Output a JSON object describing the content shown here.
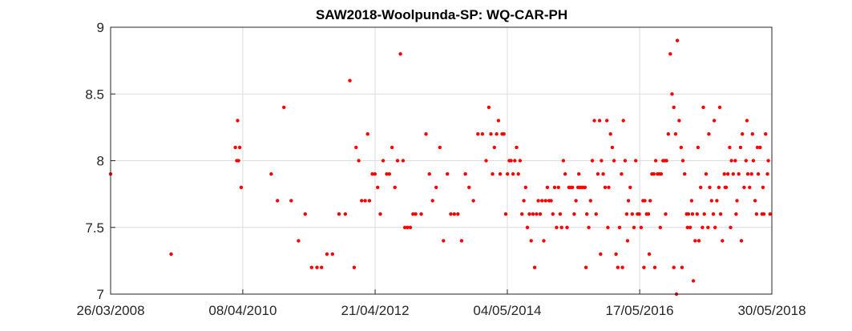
{
  "chart_data": {
    "type": "scatter",
    "title": "SAW2018-Woolpunda-SP: WQ-CAR-PH",
    "xlabel": "",
    "ylabel": "",
    "grid": true,
    "x_axis_type": "date",
    "xlim": [
      "2008-03-26",
      "2018-05-30"
    ],
    "ylim": [
      7,
      9
    ],
    "x_ticks": [
      {
        "date": "2008-03-26",
        "label": "26/03/2008"
      },
      {
        "date": "2010-04-08",
        "label": "08/04/2010"
      },
      {
        "date": "2012-04-21",
        "label": "21/04/2012"
      },
      {
        "date": "2014-05-04",
        "label": "04/05/2014"
      },
      {
        "date": "2016-05-17",
        "label": "17/05/2016"
      },
      {
        "date": "2018-05-30",
        "label": "30/05/2018"
      }
    ],
    "y_ticks": [
      {
        "value": 7,
        "label": "7"
      },
      {
        "value": 7.5,
        "label": "7.5"
      },
      {
        "value": 8,
        "label": "8"
      },
      {
        "value": 8.5,
        "label": "8.5"
      },
      {
        "value": 9,
        "label": "9"
      }
    ],
    "marker_color": "#ff0000",
    "series": [
      {
        "points": [
          [
            "2008-03-26",
            7.9
          ],
          [
            "2009-03-01",
            7.3
          ],
          [
            "2010-02-25",
            8.1
          ],
          [
            "2010-03-05",
            8.0
          ],
          [
            "2010-03-10",
            8.3
          ],
          [
            "2010-03-15",
            8.0
          ],
          [
            "2010-03-22",
            8.1
          ],
          [
            "2010-03-30",
            7.8
          ],
          [
            "2010-09-15",
            7.9
          ],
          [
            "2010-10-20",
            7.7
          ],
          [
            "2010-11-25",
            8.4
          ],
          [
            "2011-01-05",
            7.7
          ],
          [
            "2011-02-15",
            7.4
          ],
          [
            "2011-03-25",
            7.6
          ],
          [
            "2011-04-30",
            7.2
          ],
          [
            "2011-05-30",
            7.2
          ],
          [
            "2011-06-25",
            7.2
          ],
          [
            "2011-07-25",
            7.3
          ],
          [
            "2011-08-25",
            7.3
          ],
          [
            "2011-10-01",
            7.6
          ],
          [
            "2011-11-05",
            7.6
          ],
          [
            "2011-12-01",
            8.6
          ],
          [
            "2011-12-25",
            7.2
          ],
          [
            "2012-01-05",
            8.1
          ],
          [
            "2012-01-20",
            8.0
          ],
          [
            "2012-02-05",
            7.7
          ],
          [
            "2012-02-25",
            7.7
          ],
          [
            "2012-03-10",
            8.2
          ],
          [
            "2012-03-20",
            7.7
          ],
          [
            "2012-04-05",
            7.9
          ],
          [
            "2012-04-20",
            7.9
          ],
          [
            "2012-05-05",
            7.8
          ],
          [
            "2012-05-20",
            7.6
          ],
          [
            "2012-06-05",
            8.0
          ],
          [
            "2012-06-25",
            7.9
          ],
          [
            "2012-07-10",
            7.9
          ],
          [
            "2012-07-25",
            8.1
          ],
          [
            "2012-08-10",
            7.8
          ],
          [
            "2012-08-25",
            8.0
          ],
          [
            "2012-09-10",
            8.8
          ],
          [
            "2012-09-25",
            8.0
          ],
          [
            "2012-10-05",
            7.5
          ],
          [
            "2012-10-20",
            7.5
          ],
          [
            "2012-11-05",
            7.5
          ],
          [
            "2012-11-20",
            7.6
          ],
          [
            "2012-12-05",
            7.6
          ],
          [
            "2013-01-05",
            7.6
          ],
          [
            "2013-02-01",
            8.2
          ],
          [
            "2013-02-20",
            7.9
          ],
          [
            "2013-03-10",
            7.7
          ],
          [
            "2013-03-30",
            7.8
          ],
          [
            "2013-04-20",
            8.1
          ],
          [
            "2013-05-10",
            7.4
          ],
          [
            "2013-06-01",
            7.9
          ],
          [
            "2013-06-20",
            7.6
          ],
          [
            "2013-07-10",
            7.6
          ],
          [
            "2013-07-30",
            7.6
          ],
          [
            "2013-08-20",
            7.4
          ],
          [
            "2013-09-10",
            7.9
          ],
          [
            "2013-10-01",
            7.8
          ],
          [
            "2013-10-25",
            7.7
          ],
          [
            "2013-11-20",
            8.2
          ],
          [
            "2013-12-15",
            8.2
          ],
          [
            "2014-01-05",
            8.0
          ],
          [
            "2014-01-20",
            8.4
          ],
          [
            "2014-02-01",
            8.2
          ],
          [
            "2014-02-10",
            7.9
          ],
          [
            "2014-02-20",
            8.1
          ],
          [
            "2014-03-05",
            8.2
          ],
          [
            "2014-03-15",
            8.3
          ],
          [
            "2014-03-25",
            7.9
          ],
          [
            "2014-04-05",
            8.2
          ],
          [
            "2014-04-15",
            8.2
          ],
          [
            "2014-04-25",
            7.6
          ],
          [
            "2014-05-05",
            7.9
          ],
          [
            "2014-05-15",
            8.0
          ],
          [
            "2014-05-25",
            8.0
          ],
          [
            "2014-06-05",
            7.9
          ],
          [
            "2014-06-15",
            8.0
          ],
          [
            "2014-06-25",
            8.1
          ],
          [
            "2014-07-05",
            7.9
          ],
          [
            "2014-07-15",
            8.0
          ],
          [
            "2014-07-25",
            7.6
          ],
          [
            "2014-08-05",
            7.7
          ],
          [
            "2014-08-15",
            7.8
          ],
          [
            "2014-08-25",
            7.5
          ],
          [
            "2014-09-05",
            7.6
          ],
          [
            "2014-09-15",
            7.4
          ],
          [
            "2014-09-25",
            7.6
          ],
          [
            "2014-10-05",
            7.2
          ],
          [
            "2014-10-15",
            7.6
          ],
          [
            "2014-10-25",
            7.7
          ],
          [
            "2014-11-05",
            7.6
          ],
          [
            "2014-11-15",
            7.7
          ],
          [
            "2014-11-25",
            7.4
          ],
          [
            "2014-12-05",
            7.7
          ],
          [
            "2014-12-15",
            7.8
          ],
          [
            "2014-12-25",
            7.7
          ],
          [
            "2015-01-05",
            7.7
          ],
          [
            "2015-01-15",
            7.6
          ],
          [
            "2015-01-25",
            7.8
          ],
          [
            "2015-02-05",
            7.5
          ],
          [
            "2015-02-15",
            7.8
          ],
          [
            "2015-02-25",
            7.6
          ],
          [
            "2015-03-05",
            7.5
          ],
          [
            "2015-03-15",
            8.0
          ],
          [
            "2015-03-25",
            7.9
          ],
          [
            "2015-04-05",
            7.5
          ],
          [
            "2015-04-15",
            7.8
          ],
          [
            "2015-04-25",
            7.8
          ],
          [
            "2015-05-05",
            7.8
          ],
          [
            "2015-05-15",
            7.6
          ],
          [
            "2015-05-25",
            7.7
          ],
          [
            "2015-06-05",
            7.8
          ],
          [
            "2015-06-15",
            7.8
          ],
          [
            "2015-06-25",
            7.8
          ],
          [
            "2015-07-05",
            7.8
          ],
          [
            "2015-07-15",
            7.8
          ],
          [
            "2015-07-25",
            7.6
          ],
          [
            "2015-08-05",
            7.5
          ],
          [
            "2015-08-15",
            7.7
          ],
          [
            "2015-08-25",
            8.0
          ],
          [
            "2015-09-05",
            8.3
          ],
          [
            "2015-09-15",
            7.6
          ],
          [
            "2015-09-25",
            7.9
          ],
          [
            "2015-10-05",
            8.3
          ],
          [
            "2015-10-15",
            8.0
          ],
          [
            "2015-10-25",
            7.9
          ],
          [
            "2015-11-05",
            7.8
          ],
          [
            "2015-11-15",
            8.3
          ],
          [
            "2015-11-25",
            7.8
          ],
          [
            "2015-12-05",
            8.2
          ],
          [
            "2015-12-15",
            8.1
          ],
          [
            "2015-12-25",
            8.0
          ],
          [
            "2016-01-05",
            7.3
          ],
          [
            "2016-01-15",
            7.2
          ],
          [
            "2016-01-25",
            7.5
          ],
          [
            "2016-02-05",
            7.9
          ],
          [
            "2016-02-15",
            8.3
          ],
          [
            "2016-02-25",
            8.0
          ],
          [
            "2016-03-05",
            7.6
          ],
          [
            "2016-03-15",
            7.7
          ],
          [
            "2016-03-25",
            7.8
          ],
          [
            "2016-04-05",
            7.6
          ],
          [
            "2016-04-15",
            7.5
          ],
          [
            "2016-04-25",
            8.0
          ],
          [
            "2016-05-05",
            7.6
          ],
          [
            "2016-05-15",
            7.6
          ],
          [
            "2016-05-25",
            7.5
          ],
          [
            "2016-06-05",
            7.7
          ],
          [
            "2016-06-15",
            7.7
          ],
          [
            "2016-06-25",
            7.6
          ],
          [
            "2016-07-05",
            7.6
          ],
          [
            "2016-07-15",
            7.7
          ],
          [
            "2016-07-25",
            7.9
          ],
          [
            "2016-08-05",
            7.9
          ],
          [
            "2016-08-15",
            8.0
          ],
          [
            "2016-08-25",
            7.9
          ],
          [
            "2016-09-05",
            7.9
          ],
          [
            "2016-09-15",
            7.9
          ],
          [
            "2016-09-25",
            8.0
          ],
          [
            "2016-10-05",
            8.0
          ],
          [
            "2016-10-15",
            8.0
          ],
          [
            "2016-10-25",
            8.2
          ],
          [
            "2016-11-05",
            8.8
          ],
          [
            "2016-11-15",
            8.5
          ],
          [
            "2016-11-25",
            8.4
          ],
          [
            "2016-12-05",
            8.2
          ],
          [
            "2016-12-15",
            8.9
          ],
          [
            "2016-12-25",
            8.3
          ],
          [
            "2017-01-05",
            8.1
          ],
          [
            "2017-01-15",
            8.0
          ],
          [
            "2017-01-25",
            7.9
          ],
          [
            "2017-02-05",
            7.6
          ],
          [
            "2017-02-15",
            7.6
          ],
          [
            "2017-02-25",
            7.5
          ],
          [
            "2017-03-05",
            7.7
          ],
          [
            "2017-03-15",
            7.1
          ],
          [
            "2017-03-25",
            7.4
          ],
          [
            "2017-04-05",
            7.6
          ],
          [
            "2017-04-15",
            7.4
          ],
          [
            "2017-04-25",
            7.8
          ],
          [
            "2017-05-05",
            7.5
          ],
          [
            "2017-05-15",
            7.6
          ],
          [
            "2017-05-25",
            7.9
          ],
          [
            "2017-06-05",
            7.5
          ],
          [
            "2017-06-15",
            7.8
          ],
          [
            "2017-06-25",
            7.7
          ],
          [
            "2017-07-05",
            7.6
          ],
          [
            "2017-07-15",
            7.5
          ],
          [
            "2017-07-25",
            7.7
          ],
          [
            "2017-08-05",
            7.8
          ],
          [
            "2017-08-15",
            7.6
          ],
          [
            "2017-08-25",
            7.4
          ],
          [
            "2017-09-05",
            7.9
          ],
          [
            "2017-09-15",
            7.8
          ],
          [
            "2017-09-25",
            7.9
          ],
          [
            "2017-10-05",
            8.1
          ],
          [
            "2017-10-15",
            8.0
          ],
          [
            "2017-10-25",
            7.9
          ],
          [
            "2017-11-05",
            8.0
          ],
          [
            "2017-11-15",
            7.7
          ],
          [
            "2017-11-25",
            7.9
          ],
          [
            "2017-12-05",
            8.1
          ],
          [
            "2017-12-15",
            8.2
          ],
          [
            "2017-12-25",
            7.8
          ],
          [
            "2018-01-05",
            8.0
          ],
          [
            "2018-01-15",
            7.9
          ],
          [
            "2018-01-25",
            7.8
          ],
          [
            "2018-02-05",
            7.9
          ],
          [
            "2018-02-15",
            8.0
          ],
          [
            "2018-02-25",
            7.7
          ],
          [
            "2018-03-05",
            7.6
          ],
          [
            "2018-03-15",
            7.9
          ],
          [
            "2018-03-25",
            8.1
          ],
          [
            "2018-04-05",
            7.6
          ],
          [
            "2018-04-15",
            7.6
          ],
          [
            "2018-04-25",
            8.2
          ],
          [
            "2018-05-05",
            7.9
          ],
          [
            "2018-05-20",
            7.6
          ],
          [
            "2015-06-10",
            7.9
          ],
          [
            "2015-07-20",
            7.2
          ],
          [
            "2015-10-10",
            7.3
          ],
          [
            "2015-11-20",
            7.5
          ],
          [
            "2016-02-10",
            7.2
          ],
          [
            "2016-03-10",
            7.4
          ],
          [
            "2016-06-10",
            7.2
          ],
          [
            "2016-07-10",
            7.3
          ],
          [
            "2016-08-10",
            7.2
          ],
          [
            "2016-09-10",
            7.5
          ],
          [
            "2016-10-10",
            7.6
          ],
          [
            "2016-11-25",
            7.2
          ],
          [
            "2016-12-10",
            7.0
          ],
          [
            "2017-01-10",
            7.2
          ],
          [
            "2017-02-10",
            7.5
          ],
          [
            "2017-03-10",
            7.6
          ],
          [
            "2017-04-10",
            8.1
          ],
          [
            "2017-05-10",
            8.4
          ],
          [
            "2017-06-10",
            8.2
          ],
          [
            "2017-07-10",
            8.3
          ],
          [
            "2017-08-10",
            8.4
          ],
          [
            "2017-09-10",
            7.8
          ],
          [
            "2017-10-10",
            7.5
          ],
          [
            "2017-11-10",
            7.6
          ],
          [
            "2017-12-10",
            7.4
          ],
          [
            "2018-01-10",
            8.3
          ],
          [
            "2018-02-10",
            8.2
          ],
          [
            "2018-03-10",
            8.1
          ],
          [
            "2018-04-10",
            7.8
          ],
          [
            "2018-05-10",
            8.0
          ]
        ]
      }
    ]
  }
}
